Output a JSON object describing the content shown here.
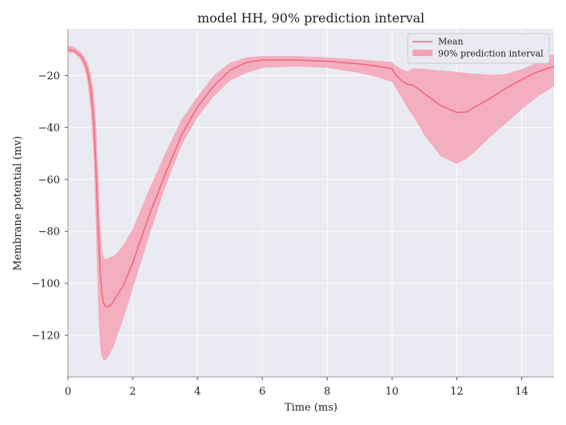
{
  "chart_data": {
    "type": "area",
    "title": "model HH, 90% prediction interval",
    "xlabel": "Time (ms)",
    "ylabel": "Membrane potential (mv)",
    "xlim": [
      0,
      15
    ],
    "ylim": [
      -136,
      -2
    ],
    "xticks": [
      0,
      2,
      4,
      6,
      8,
      10,
      12,
      14
    ],
    "xtick_labels": [
      "0",
      "2",
      "4",
      "6",
      "8",
      "10",
      "12",
      "14"
    ],
    "yticks": [
      -20,
      -40,
      -60,
      -80,
      -100,
      -120
    ],
    "ytick_labels": [
      "−20",
      "−40",
      "−60",
      "−80",
      "−100",
      "−120"
    ],
    "grid": true,
    "legend_position": "top-right",
    "background_color": "#eaeaf2",
    "line_color": "#f06a7f",
    "band_color": "#f4a3b6",
    "series": [
      {
        "name": "Mean",
        "kind": "line",
        "x": [
          0,
          0.2,
          0.4,
          0.5,
          0.6,
          0.7,
          0.8,
          0.85,
          0.9,
          0.95,
          1.0,
          1.05,
          1.1,
          1.15,
          1.2,
          1.3,
          1.4,
          1.5,
          1.7,
          2.0,
          2.5,
          3.0,
          3.5,
          4.0,
          4.5,
          5.0,
          5.5,
          6.0,
          7.0,
          8.0,
          9.0,
          9.5,
          10.0,
          10.1,
          10.3,
          10.5,
          10.6,
          10.8,
          11.0,
          11.5,
          12.0,
          12.3,
          12.5,
          13.0,
          13.5,
          14.0,
          14.5,
          15.0
        ],
        "y": [
          -10,
          -10.5,
          -12.5,
          -14.5,
          -18,
          -25,
          -38,
          -52,
          -68,
          -84,
          -97,
          -104,
          -107.5,
          -108.8,
          -109,
          -108.5,
          -107,
          -105,
          -101,
          -92,
          -74,
          -58,
          -43,
          -32,
          -24,
          -18,
          -15,
          -14,
          -14,
          -14.5,
          -15.5,
          -16.3,
          -17.3,
          -19.5,
          -22,
          -23.5,
          -23.5,
          -25,
          -27,
          -31.5,
          -34.2,
          -34,
          -32.5,
          -29,
          -25,
          -21.5,
          -18.5,
          -16.5
        ]
      },
      {
        "name": "90% prediction interval",
        "kind": "band",
        "x": [
          0,
          0.2,
          0.4,
          0.5,
          0.6,
          0.7,
          0.8,
          0.85,
          0.9,
          0.95,
          1.0,
          1.05,
          1.1,
          1.15,
          1.2,
          1.3,
          1.4,
          1.5,
          1.7,
          2.0,
          2.5,
          3.0,
          3.5,
          4.0,
          4.5,
          5.0,
          5.5,
          6.0,
          7.0,
          8.0,
          9.0,
          9.5,
          10.0,
          10.1,
          10.3,
          10.5,
          10.6,
          10.8,
          11.0,
          11.5,
          12.0,
          12.3,
          12.5,
          13.0,
          13.5,
          14.0,
          14.5,
          14.9,
          15.0
        ],
        "lower": [
          -11,
          -11.5,
          -14,
          -17,
          -22,
          -33,
          -52,
          -72,
          -95,
          -115,
          -125,
          -128.5,
          -129.5,
          -129.5,
          -129,
          -127,
          -124.5,
          -121,
          -114,
          -102,
          -82,
          -63,
          -47,
          -36,
          -28,
          -22,
          -19,
          -17,
          -16.5,
          -17,
          -19,
          -20.5,
          -22.5,
          -24.5,
          -28.5,
          -33,
          -34.5,
          -38.5,
          -43,
          -51,
          -54,
          -52,
          -50,
          -44,
          -38.5,
          -33,
          -28,
          -25,
          -24
        ],
        "upper": [
          -8.5,
          -9,
          -11,
          -12.5,
          -15,
          -19,
          -27,
          -35,
          -47,
          -62,
          -78,
          -88,
          -90,
          -90.5,
          -90.5,
          -90,
          -89.5,
          -88.5,
          -85.5,
          -79,
          -64,
          -50,
          -37,
          -28,
          -20,
          -15,
          -13,
          -12.5,
          -12.5,
          -13,
          -13.8,
          -14.3,
          -14.8,
          -16,
          -17.5,
          -18.5,
          -17.3,
          -17.2,
          -17.4,
          -18,
          -18.6,
          -19,
          -19.2,
          -19.7,
          -19.5,
          -17.5,
          -15,
          -12,
          -12
        ]
      }
    ]
  }
}
